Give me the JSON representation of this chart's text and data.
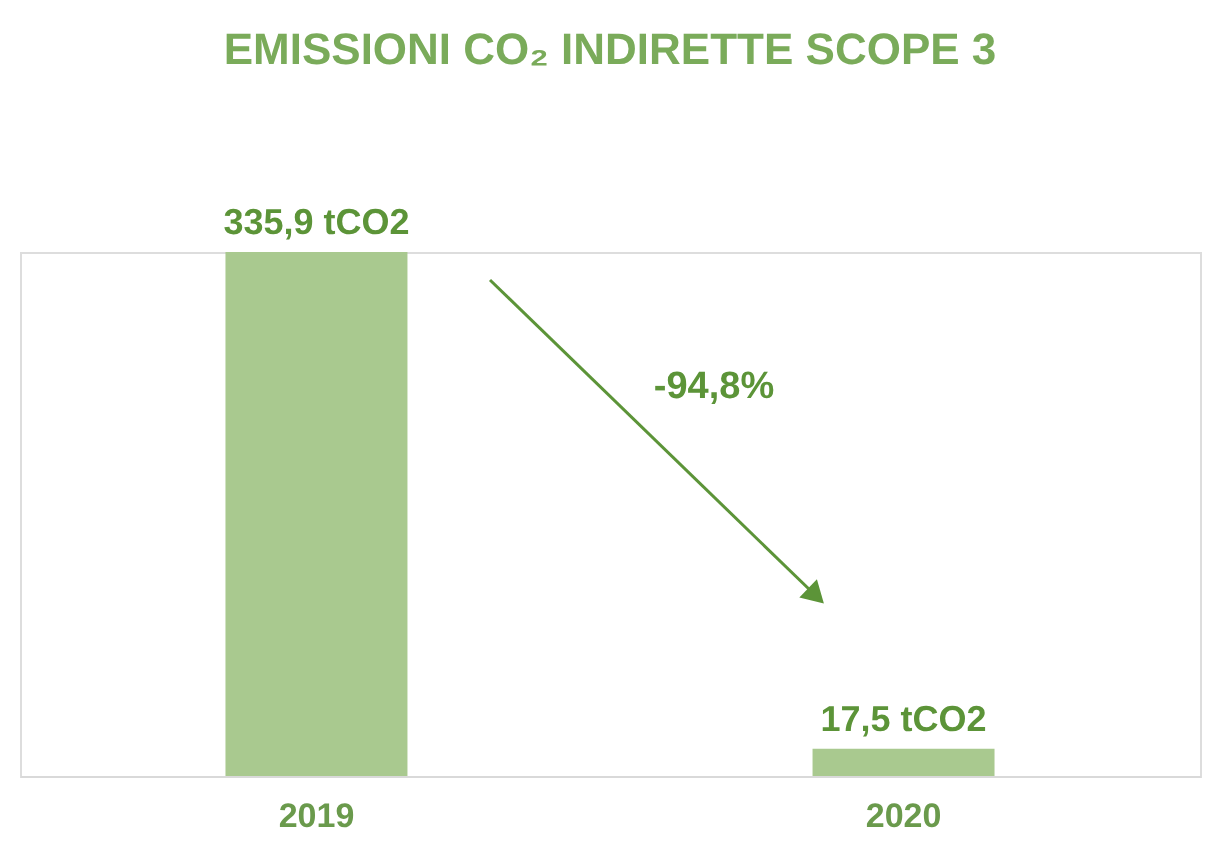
{
  "chart_data": {
    "type": "bar",
    "title": "EMISSIONI CO₂ INDIRETTE SCOPE 3",
    "categories": [
      "2019",
      "2020"
    ],
    "values": [
      335.9,
      17.5
    ],
    "value_labels": [
      "335,9 tCO2",
      "17,5 tCO2"
    ],
    "color": "#a9c98f",
    "annotations": [
      "-94,8%"
    ]
  }
}
